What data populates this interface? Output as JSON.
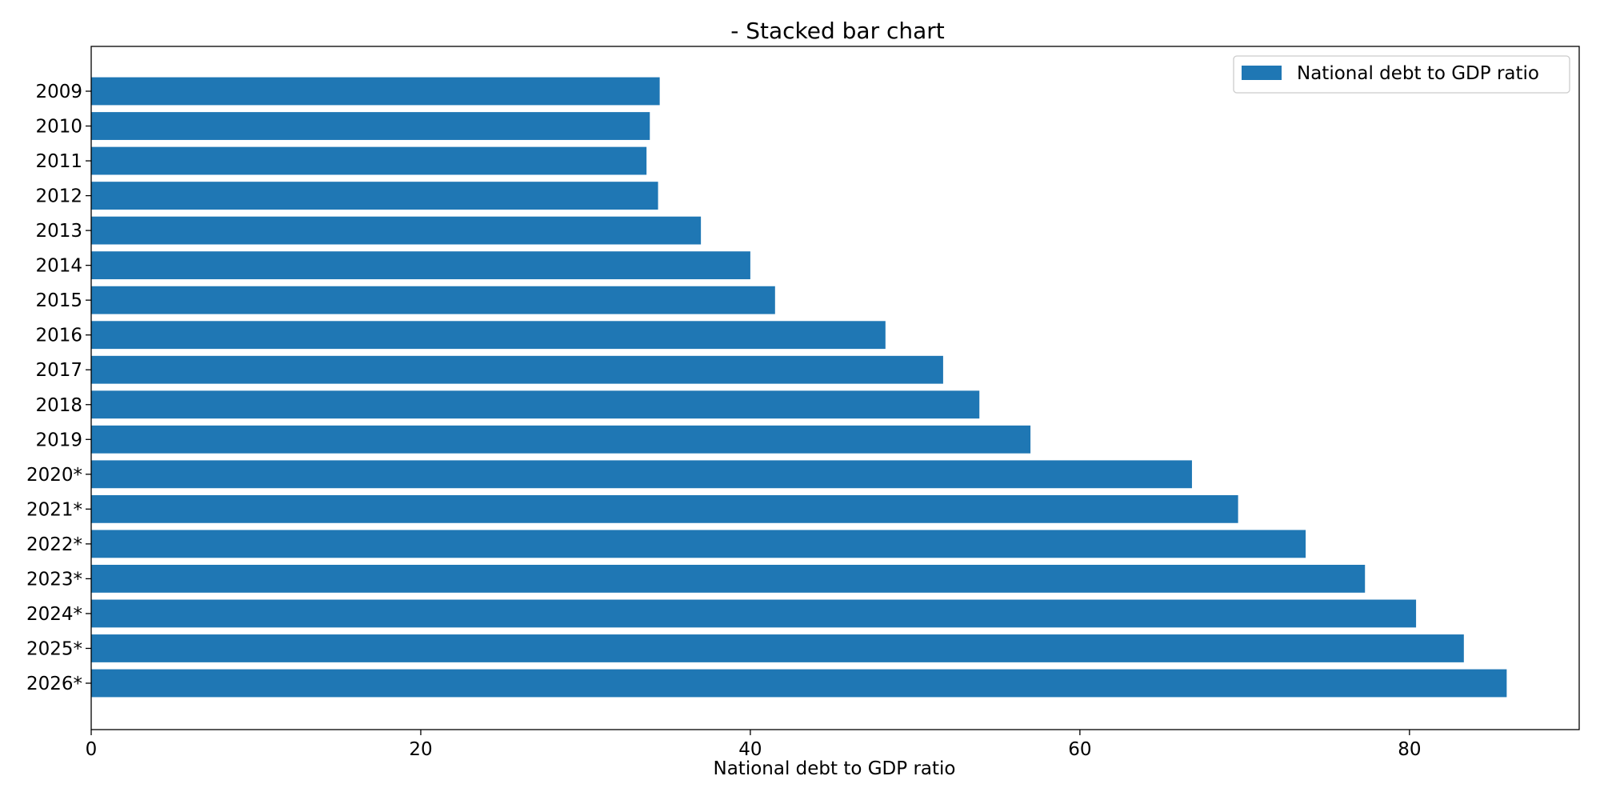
{
  "chart_data": {
    "type": "bar",
    "orientation": "horizontal",
    "title": "- Stacked bar chart",
    "xlabel": "National debt to GDP ratio",
    "ylabel": "",
    "xlim": [
      0,
      90.3
    ],
    "xticks": [
      0,
      20,
      40,
      60,
      80
    ],
    "categories": [
      "2009",
      "2010",
      "2011",
      "2012",
      "2013",
      "2014",
      "2015",
      "2016",
      "2017",
      "2018",
      "2019",
      "2020*",
      "2021*",
      "2022*",
      "2023*",
      "2024*",
      "2025*",
      "2026*"
    ],
    "series": [
      {
        "name": "National debt to GDP ratio",
        "color": "#1f77b4",
        "values": [
          34.5,
          33.9,
          33.7,
          34.4,
          37.0,
          40.0,
          41.5,
          48.2,
          51.7,
          53.9,
          57.0,
          66.8,
          69.6,
          73.7,
          77.3,
          80.4,
          83.3,
          85.9
        ]
      }
    ],
    "grid": false,
    "legend": "top-right"
  }
}
